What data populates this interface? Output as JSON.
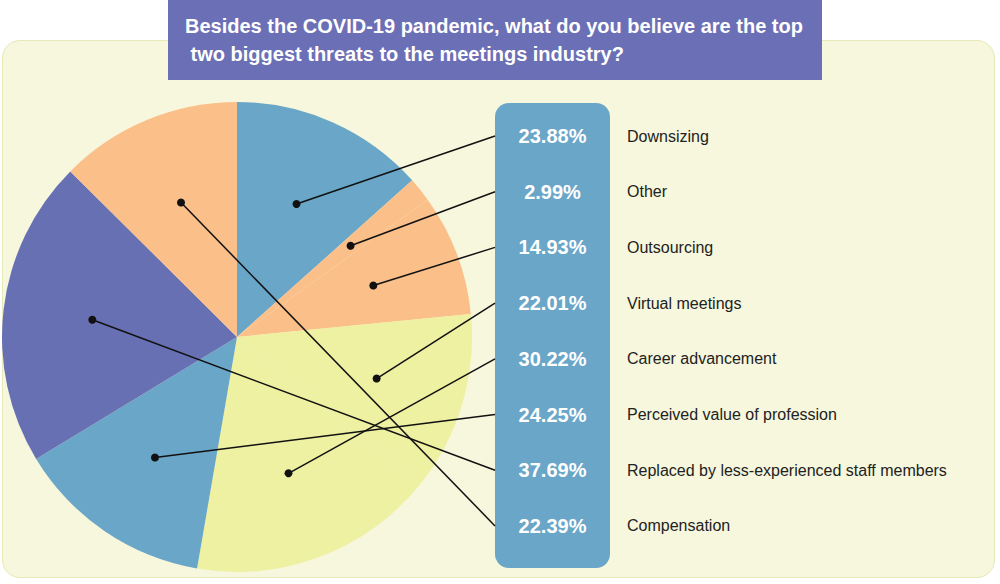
{
  "chart_data": {
    "type": "pie",
    "title": "Besides the COVID-19 pandemic, what do you believe are the top two biggest threats to the meetings industry?",
    "categories": [
      "Downsizing",
      "Other",
      "Outsourcing",
      "Virtual meetings",
      "Career advancement",
      "Perceived value of profession",
      "Replaced by less-experienced staff members",
      "Compensation"
    ],
    "values": [
      23.88,
      2.99,
      14.93,
      22.01,
      30.22,
      24.25,
      37.69,
      22.39
    ],
    "value_labels": [
      "23.88%",
      "2.99%",
      "14.93%",
      "22.01%",
      "30.22%",
      "24.25%",
      "37.69%",
      "22.39%"
    ],
    "colors": [
      "#6aa6c8",
      "#fbbf8a",
      "#fbbf8a",
      "#eef0a2",
      "#eef0a2",
      "#6aa6c8",
      "#6870b4",
      "#fbbf8a"
    ],
    "data_labels": true
  }
}
